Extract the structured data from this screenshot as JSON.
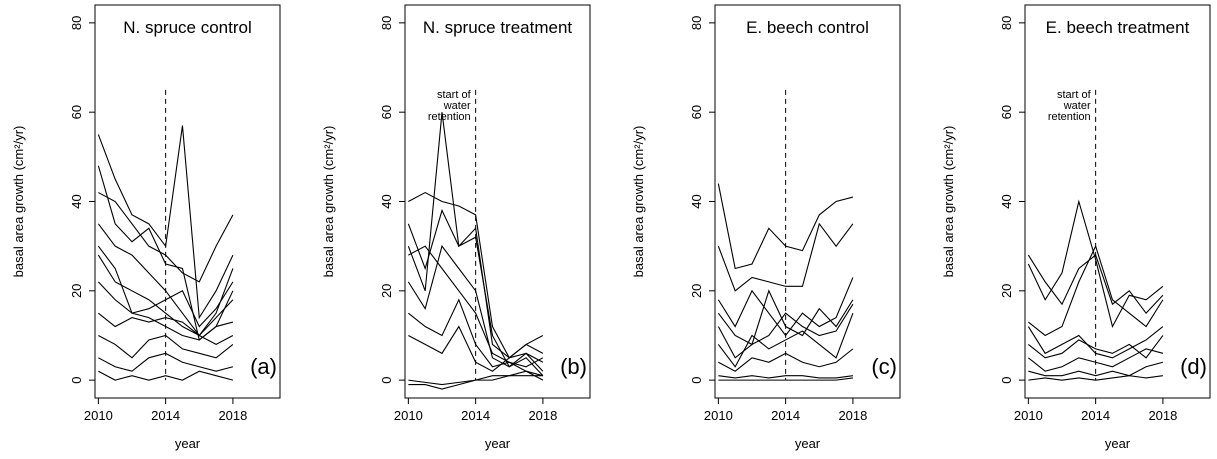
{
  "chart_data": [
    {
      "type": "line",
      "title": "N. spruce control",
      "panel_label": "(a)",
      "xlabel": "year",
      "ylabel": "basal area growth (cm²/yr)",
      "x": [
        2010,
        2011,
        2012,
        2013,
        2014,
        2015,
        2016,
        2017,
        2018
      ],
      "vline": {
        "x": 2014,
        "ymax": 65
      },
      "xlim": [
        2009.8,
        2020.8
      ],
      "ylim": [
        -4,
        84
      ],
      "xticks": [
        2010,
        2014,
        2018
      ],
      "yticks": [
        0,
        20,
        40,
        60,
        80
      ],
      "series": [
        {
          "color": "#000000",
          "values": [
            55,
            45,
            37,
            35,
            30,
            57,
            14,
            20,
            28
          ]
        },
        {
          "color": "#000000",
          "values": [
            48,
            35,
            31,
            34,
            26,
            25,
            9,
            12,
            20
          ]
        },
        {
          "color": "#000000",
          "values": [
            42,
            40,
            35,
            30,
            28,
            24,
            22,
            30,
            37
          ]
        },
        {
          "color": "#000000",
          "values": [
            35,
            30,
            28,
            24,
            20,
            15,
            10,
            15,
            25
          ]
        },
        {
          "color": "#000000",
          "values": [
            28,
            22,
            20,
            18,
            15,
            12,
            10,
            14,
            18
          ]
        },
        {
          "color": "#000000",
          "values": [
            22,
            18,
            15,
            14,
            12,
            10,
            9,
            12,
            13
          ]
        },
        {
          "color": "#000000",
          "values": [
            15,
            12,
            14,
            13,
            14,
            13,
            10,
            8,
            10
          ]
        },
        {
          "color": "#000000",
          "values": [
            10,
            8,
            5,
            9,
            10,
            7,
            6,
            5,
            8
          ]
        },
        {
          "color": "#000000",
          "values": [
            5,
            3,
            2,
            5,
            6,
            4,
            3,
            2,
            3
          ]
        },
        {
          "color": "#000000",
          "values": [
            2,
            0,
            1,
            0,
            1,
            0,
            2,
            1,
            0
          ]
        },
        {
          "color": "#000000",
          "values": [
            30,
            25,
            15,
            16,
            18,
            20,
            12,
            16,
            22
          ]
        }
      ]
    },
    {
      "type": "line",
      "title": "N. spruce treatment",
      "panel_label": "(b)",
      "xlabel": "year",
      "ylabel": "basal area growth (cm²/yr)",
      "annotation": [
        "start of",
        "water",
        "retention"
      ],
      "x": [
        2010,
        2011,
        2012,
        2013,
        2014,
        2015,
        2016,
        2017,
        2018
      ],
      "vline": {
        "x": 2014,
        "ymax": 65
      },
      "xlim": [
        2009.8,
        2020.8
      ],
      "ylim": [
        -4,
        84
      ],
      "xticks": [
        2010,
        2014,
        2018
      ],
      "yticks": [
        0,
        20,
        40,
        60,
        80
      ],
      "series": [
        {
          "color": "#000000",
          "values": [
            40,
            42,
            40,
            39,
            37,
            12,
            5,
            6,
            2
          ]
        },
        {
          "color": "#000000",
          "values": [
            30,
            20,
            60,
            30,
            32,
            10,
            3,
            5,
            1
          ]
        },
        {
          "color": "#000000",
          "values": [
            35,
            25,
            38,
            30,
            34,
            8,
            5,
            8,
            10
          ]
        },
        {
          "color": "#000000",
          "values": [
            22,
            16,
            30,
            25,
            20,
            5,
            3,
            6,
            4
          ]
        },
        {
          "color": "#000000",
          "values": [
            15,
            12,
            10,
            18,
            8,
            3,
            4,
            2,
            1
          ]
        },
        {
          "color": "#000000",
          "values": [
            -1,
            -1,
            -2,
            -1,
            0,
            0,
            1,
            2,
            0
          ]
        },
        {
          "color": "#000000",
          "values": [
            0,
            -0.5,
            -1,
            -0.5,
            0,
            1,
            1,
            1,
            1
          ]
        },
        {
          "color": "#000000",
          "values": [
            28,
            30,
            25,
            20,
            15,
            6,
            4,
            3,
            5
          ]
        },
        {
          "color": "#000000",
          "values": [
            10,
            8,
            6,
            12,
            4,
            2,
            5,
            8,
            6
          ]
        }
      ]
    },
    {
      "type": "line",
      "title": "E. beech control",
      "panel_label": "(c)",
      "xlabel": "year",
      "ylabel": "basal area growth (cm²/yr)",
      "x": [
        2010,
        2011,
        2012,
        2013,
        2014,
        2015,
        2016,
        2017,
        2018
      ],
      "vline": {
        "x": 2014,
        "ymax": 65
      },
      "xlim": [
        2009.8,
        2020.8
      ],
      "ylim": [
        -4,
        84
      ],
      "xticks": [
        2010,
        2014,
        2018
      ],
      "yticks": [
        0,
        20,
        40,
        60,
        80
      ],
      "series": [
        {
          "color": "#000000",
          "values": [
            44,
            25,
            26,
            34,
            30,
            29,
            37,
            40,
            41
          ]
        },
        {
          "color": "#000000",
          "values": [
            30,
            20,
            23,
            22,
            21,
            21,
            35,
            30,
            35
          ]
        },
        {
          "color": "#000000",
          "values": [
            18,
            12,
            20,
            15,
            10,
            15,
            12,
            14,
            23
          ]
        },
        {
          "color": "#000000",
          "values": [
            12,
            5,
            8,
            10,
            15,
            12,
            10,
            11,
            17
          ]
        },
        {
          "color": "#000000",
          "values": [
            8,
            3,
            10,
            7,
            9,
            11,
            8,
            5,
            15
          ]
        },
        {
          "color": "#000000",
          "values": [
            4,
            2,
            5,
            4,
            6,
            4,
            3,
            4,
            7
          ]
        },
        {
          "color": "#000000",
          "values": [
            1,
            0.5,
            1,
            0.5,
            1,
            1,
            0.5,
            0.5,
            1
          ]
        },
        {
          "color": "#000000",
          "values": [
            15,
            10,
            8,
            20,
            12,
            10,
            16,
            12,
            18
          ]
        },
        {
          "color": "#000000",
          "values": [
            0,
            0,
            0,
            0,
            0,
            0,
            0,
            0,
            0.5
          ]
        }
      ]
    },
    {
      "type": "line",
      "title": "E. beech treatment",
      "panel_label": "(d)",
      "xlabel": "year",
      "ylabel": "basal area growth (cm²/yr)",
      "annotation": [
        "start of",
        "water",
        "retention"
      ],
      "x": [
        2010,
        2011,
        2012,
        2013,
        2014,
        2015,
        2016,
        2017,
        2018
      ],
      "vline": {
        "x": 2014,
        "ymax": 65
      },
      "xlim": [
        2009.8,
        2020.8
      ],
      "ylim": [
        -4,
        84
      ],
      "xticks": [
        2010,
        2014,
        2018
      ],
      "yticks": [
        0,
        20,
        40,
        60,
        80
      ],
      "series": [
        {
          "color": "#000000",
          "values": [
            28,
            22,
            17,
            25,
            28,
            17,
            20,
            15,
            19
          ]
        },
        {
          "color": "#000000",
          "values": [
            26,
            18,
            24,
            40,
            27,
            12,
            19,
            18,
            21
          ]
        },
        {
          "color": "#000000",
          "values": [
            13,
            10,
            12,
            22,
            30,
            18,
            15,
            12,
            18
          ]
        },
        {
          "color": "#000000",
          "values": [
            8,
            5,
            6,
            9,
            7,
            6,
            8,
            5,
            10
          ]
        },
        {
          "color": "#000000",
          "values": [
            5,
            2,
            3,
            5,
            4,
            3,
            5,
            7,
            6
          ]
        },
        {
          "color": "#000000",
          "values": [
            2,
            1,
            1,
            2,
            1,
            2,
            1,
            3,
            4
          ]
        },
        {
          "color": "#000000",
          "values": [
            0,
            0.5,
            0,
            0.5,
            0,
            0.5,
            1,
            0.5,
            1
          ]
        },
        {
          "color": "#000000",
          "values": [
            12,
            6,
            8,
            10,
            6,
            5,
            7,
            9,
            12
          ]
        }
      ]
    }
  ]
}
